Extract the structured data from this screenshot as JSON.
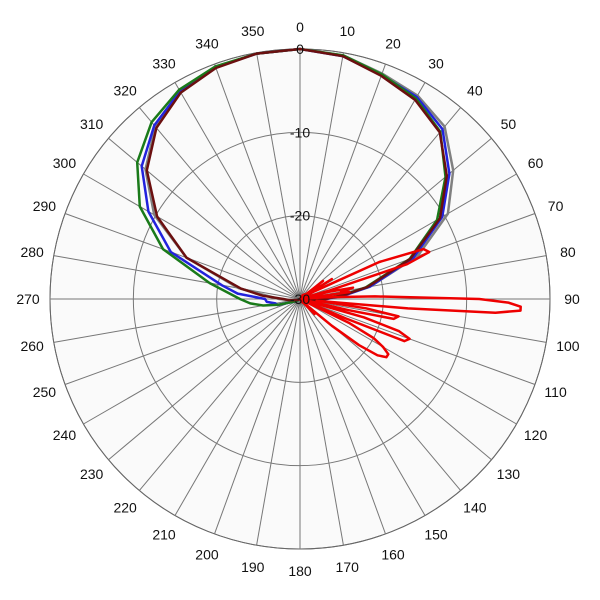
{
  "chart_data": {
    "type": "polar-line",
    "title": "",
    "angle_ticks": [
      "0",
      "10",
      "20",
      "30",
      "40",
      "50",
      "60",
      "70",
      "80",
      "90",
      "100",
      "110",
      "120",
      "130",
      "140",
      "150",
      "160",
      "170",
      "180",
      "190",
      "200",
      "210",
      "220",
      "230",
      "240",
      "250",
      "260",
      "270",
      "280",
      "290",
      "300",
      "310",
      "320",
      "330",
      "340",
      "350"
    ],
    "radial_ticks": [
      {
        "value": 0,
        "label": "0"
      },
      {
        "value": -10,
        "label": "-10"
      },
      {
        "value": -20,
        "label": "-20"
      },
      {
        "value": -30,
        "label": "-30"
      }
    ],
    "r_range": [
      -30,
      0
    ],
    "inner_circle_value": -20,
    "angle_direction": "clockwise",
    "zero_angle": "top",
    "grid": true,
    "series": [
      {
        "color": "#808080",
        "angles": [
          0,
          10,
          20,
          30,
          40,
          50,
          60,
          70,
          80,
          85,
          90,
          92,
          95,
          100,
          110,
          120,
          180,
          240,
          260,
          270,
          280,
          290,
          300,
          310,
          320,
          330,
          340,
          350,
          360
        ],
        "values": [
          0,
          -0.3,
          -1.2,
          -1.8,
          -3.0,
          -6.0,
          -9.5,
          -15.0,
          -21.5,
          -25.0,
          -27.5,
          -28.2,
          -29.0,
          -29.5,
          -29.8,
          -29.9,
          -30,
          -29.9,
          -29.0,
          -27.5,
          -22.5,
          -15.5,
          -9.8,
          -5.8,
          -3.0,
          -1.3,
          -0.4,
          -0.1,
          0
        ]
      },
      {
        "color": "#2222dd",
        "angles": [
          0,
          10,
          20,
          30,
          40,
          50,
          60,
          70,
          80,
          85,
          90,
          95,
          100,
          120,
          180,
          240,
          255,
          260,
          265,
          270,
          275,
          280,
          290,
          300,
          310,
          320,
          330,
          340,
          350,
          360
        ],
        "values": [
          0,
          -0.4,
          -1.4,
          -2.0,
          -3.4,
          -6.6,
          -10.3,
          -15.5,
          -21.5,
          -24.5,
          -26.8,
          -28.0,
          -29.0,
          -29.8,
          -30,
          -29.5,
          -27.2,
          -27.0,
          -26.0,
          -25.8,
          -22.5,
          -20.5,
          -13.5,
          -9.0,
          -5.2,
          -2.8,
          -1.2,
          -0.4,
          -0.1,
          0
        ]
      },
      {
        "color": "#1a7a1a",
        "angles": [
          0,
          10,
          20,
          30,
          40,
          50,
          60,
          70,
          80,
          85,
          90,
          95,
          100,
          110,
          120,
          180,
          240,
          255,
          260,
          265,
          270,
          280,
          290,
          300,
          310,
          320,
          330,
          340,
          350,
          360
        ],
        "values": [
          0,
          -0.3,
          -1.3,
          -2.2,
          -3.8,
          -7.2,
          -11.0,
          -16.0,
          -22.0,
          -25.0,
          -27.0,
          -27.8,
          -29.0,
          -29.6,
          -29.9,
          -30,
          -29.5,
          -27.3,
          -25.5,
          -24.0,
          -22.8,
          -19.0,
          -12.5,
          -7.8,
          -4.5,
          -2.3,
          -1.0,
          -0.3,
          -0.1,
          0
        ]
      },
      {
        "color": "#6b0f0f",
        "angles": [
          0,
          10,
          20,
          30,
          40,
          50,
          60,
          70,
          80,
          85,
          90,
          95,
          100,
          120,
          180,
          240,
          260,
          265,
          270,
          275,
          280,
          290,
          300,
          310,
          320,
          330,
          340,
          350,
          360
        ],
        "values": [
          0,
          -0.4,
          -1.5,
          -2.4,
          -3.9,
          -7.0,
          -10.6,
          -15.9,
          -21.8,
          -24.8,
          -27.0,
          -28.2,
          -29.2,
          -29.8,
          -30,
          -29.8,
          -29.2,
          -28.6,
          -28.0,
          -25.5,
          -22.8,
          -15.5,
          -10.2,
          -6.0,
          -3.2,
          -1.4,
          -0.5,
          -0.1,
          0
        ]
      },
      {
        "color": "#ee0000",
        "angles": [
          0,
          30,
          35,
          40,
          45,
          50,
          52,
          55,
          58,
          60,
          62,
          65,
          68,
          70,
          72,
          74,
          75,
          76,
          78,
          80,
          82,
          84,
          85,
          86,
          88,
          90,
          91,
          92,
          93,
          94,
          95,
          96,
          98,
          100,
          102,
          103,
          104,
          106,
          108,
          110,
          112,
          113,
          114,
          116,
          118,
          120,
          122,
          124,
          126,
          128,
          130,
          132,
          134,
          136,
          138,
          140,
          145,
          150,
          200,
          300,
          330,
          360
        ],
        "values": [
          -30,
          -30,
          -29.4,
          -30,
          -29.2,
          -30,
          -26.5,
          -30,
          -25.5,
          -30,
          -28.0,
          -19.5,
          -14.0,
          -13.5,
          -16.5,
          -26.5,
          -30,
          -26.5,
          -23.5,
          -25.0,
          -24.0,
          -29.0,
          -30,
          -27.0,
          -21.0,
          -8.5,
          -5.0,
          -3.5,
          -3.5,
          -6.5,
          -17.0,
          -28.0,
          -22.0,
          -18.0,
          -18.5,
          -24.0,
          -30,
          -22.0,
          -17.5,
          -16.0,
          -16.5,
          -24.0,
          -30,
          -23.5,
          -20.0,
          -18.5,
          -17.5,
          -17.5,
          -18.5,
          -21.0,
          -25.0,
          -28.5,
          -30,
          -27.5,
          -29.5,
          -30,
          -29.5,
          -30,
          -30,
          -30,
          -30,
          -30
        ]
      }
    ]
  }
}
